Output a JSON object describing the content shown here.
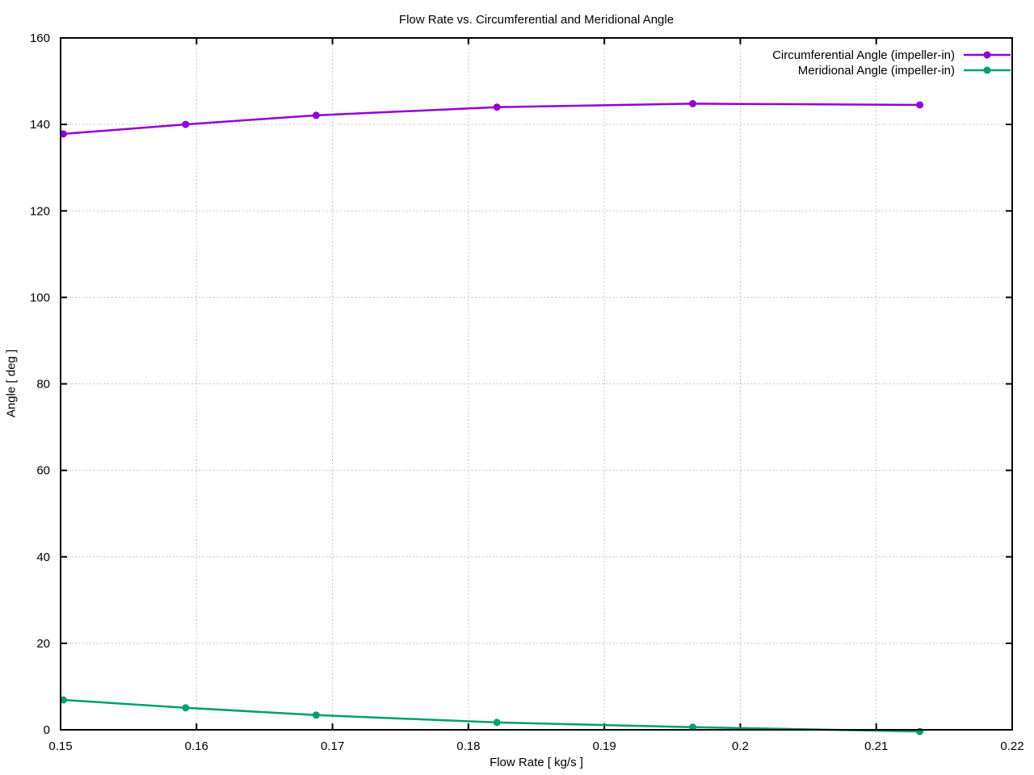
{
  "page": {
    "background": "#ffffff"
  },
  "colors": {
    "border": "#000000",
    "grid": "#b0b0b0",
    "text": "#000000",
    "tick": "#000000"
  },
  "chart_data": {
    "type": "line",
    "title": "Flow Rate vs. Circumferential and Meridional Angle",
    "xlabel": "Flow Rate [ kg/s ]",
    "ylabel": "Angle [ deg ]",
    "xlim": [
      0.15,
      0.22
    ],
    "ylim": [
      0,
      160
    ],
    "grid": "dotted",
    "legend_position": "top-right-inside",
    "x_ticks": {
      "values": [
        0.15,
        0.16,
        0.17,
        0.18,
        0.19,
        0.2,
        0.21,
        0.22
      ],
      "labels": [
        "0.15",
        "0.16",
        "0.17",
        "0.18",
        "0.19",
        "0.2",
        "0.21",
        "0.22"
      ]
    },
    "y_ticks": {
      "values": [
        0,
        20,
        40,
        60,
        80,
        100,
        120,
        140,
        160
      ],
      "labels": [
        "0",
        "20",
        "40",
        "60",
        "80",
        "100",
        "120",
        "140",
        "160"
      ]
    },
    "x": [
      0.1502,
      0.1592,
      0.1688,
      0.1821,
      0.1965,
      0.2132
    ],
    "series": [
      {
        "name": "Circumferential Angle (impeller-in)",
        "color": "#9400d3",
        "marker": "circle",
        "values": [
          137.8,
          140.0,
          142.1,
          144.0,
          144.8,
          144.5
        ]
      },
      {
        "name": "Meridional Angle (impeller-in)",
        "color": "#009e73",
        "marker": "circle",
        "values": [
          6.9,
          5.1,
          3.4,
          1.7,
          0.6,
          -0.4
        ]
      }
    ]
  }
}
